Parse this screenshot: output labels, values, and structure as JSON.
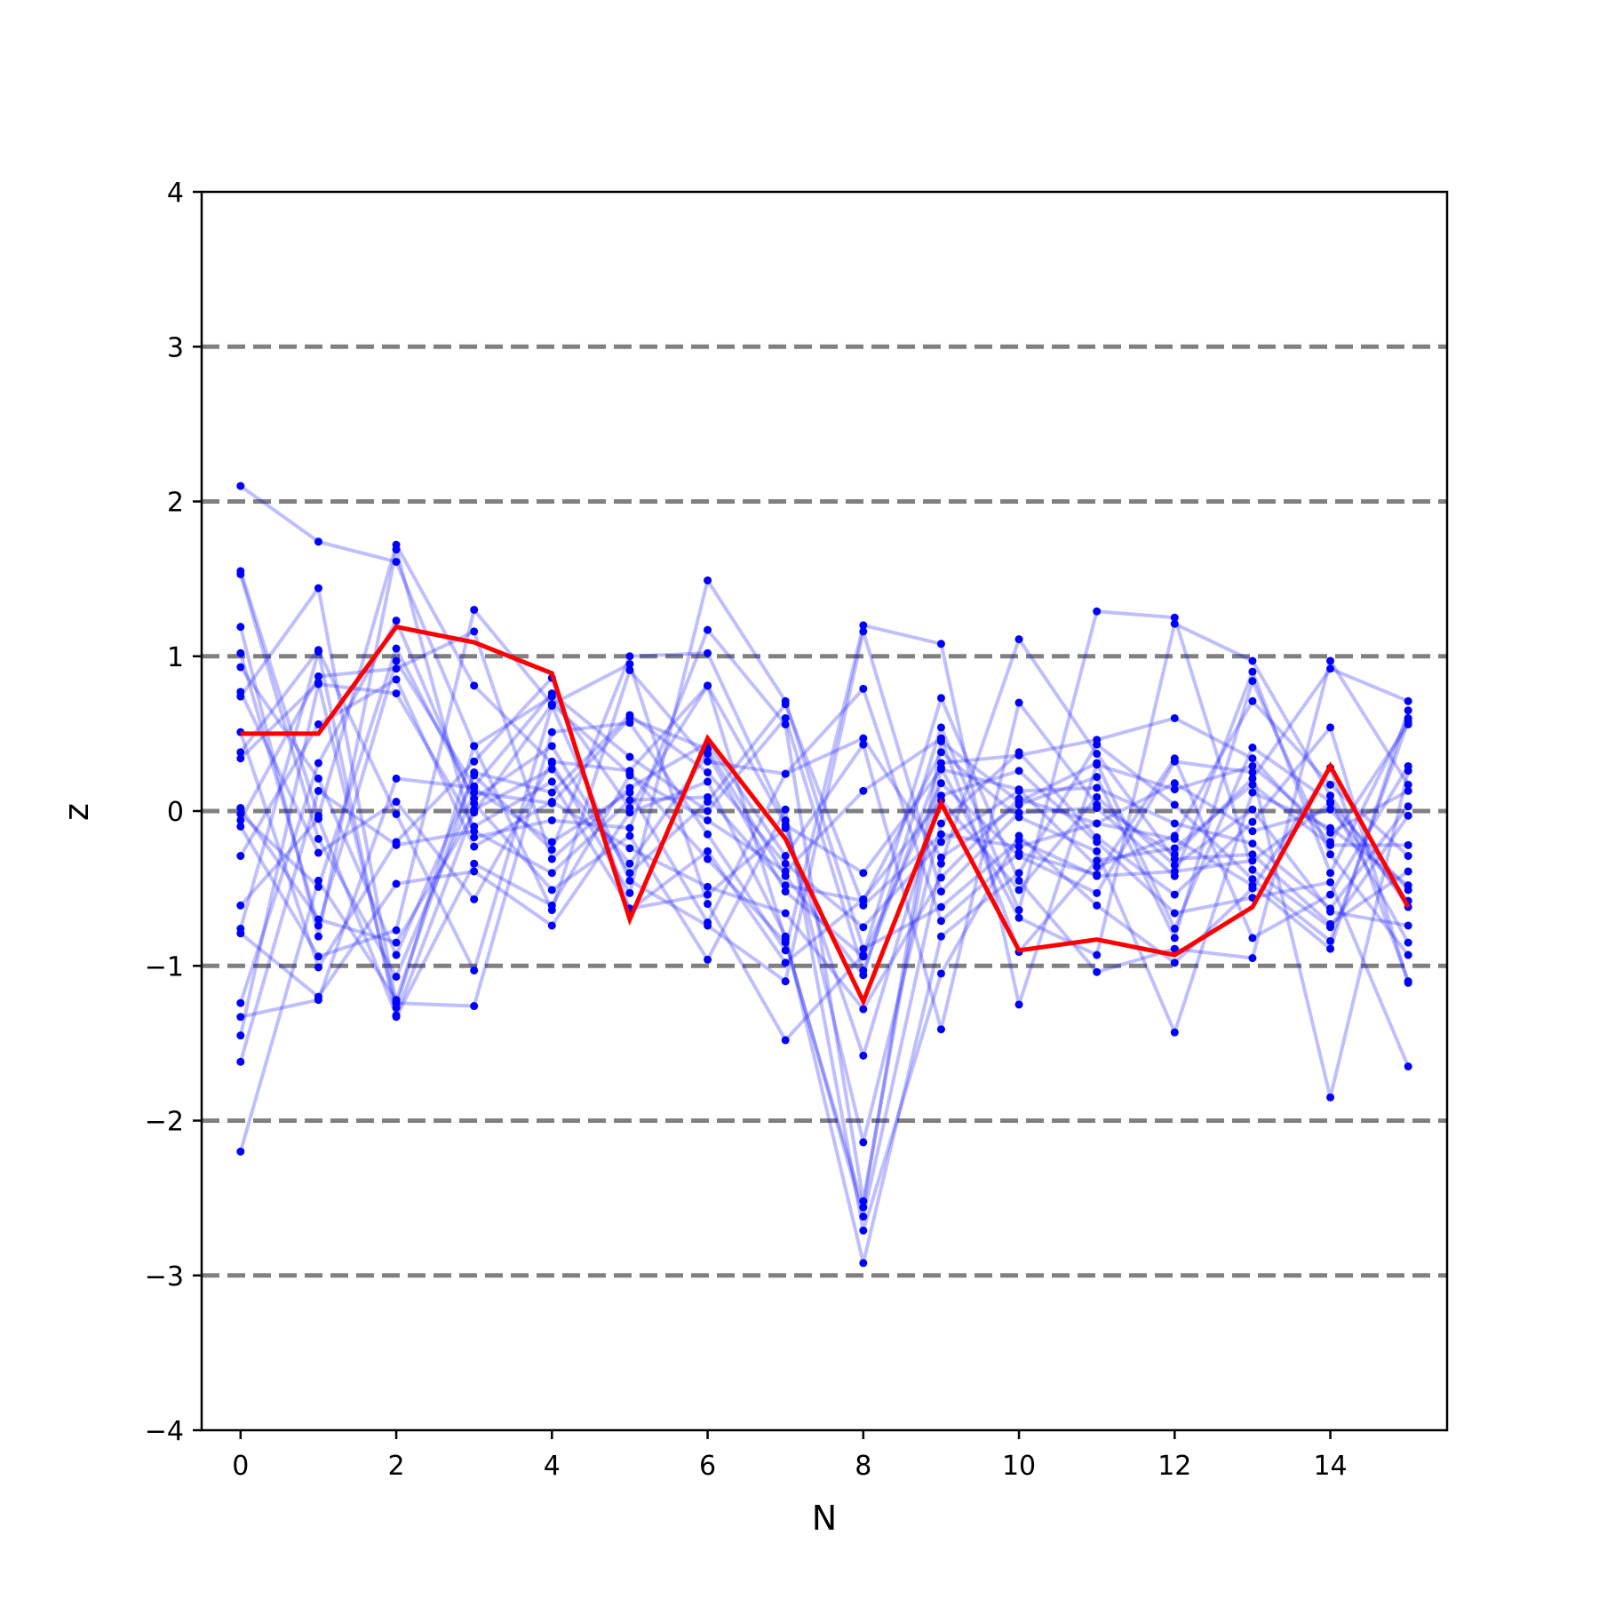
{
  "chart_data": {
    "type": "line",
    "title": "",
    "xlabel": "N",
    "ylabel": "z",
    "xlim": [
      -0.5,
      15.5
    ],
    "ylim": [
      -4,
      4
    ],
    "xticks": [
      0,
      2,
      4,
      6,
      8,
      10,
      12,
      14
    ],
    "yticks": [
      -4,
      -3,
      -2,
      -1,
      0,
      1,
      2,
      3,
      4
    ],
    "xtick_labels": [
      "0",
      "2",
      "4",
      "6",
      "8",
      "10",
      "12",
      "14"
    ],
    "ytick_labels": [
      "−4",
      "−3",
      "−2",
      "−1",
      "0",
      "1",
      "2",
      "3",
      "4"
    ],
    "reference_lines": [
      -3,
      -2,
      -1,
      0,
      1,
      2,
      3
    ],
    "reference_line_style": "dashed",
    "grid": false,
    "x": [
      0,
      1,
      2,
      3,
      4,
      5,
      6,
      7,
      8,
      9,
      10,
      11,
      12,
      13,
      14,
      15
    ],
    "background_series": [
      [
        2.1,
        1.74,
        1.61,
        0.42,
        0.74,
        0.02,
        0.81,
        -0.09,
        -0.4,
        0.27,
        0.14,
        -0.36,
        -0.16,
        0.71,
        0.17,
        -0.29
      ],
      [
        1.55,
        -0.03,
        1.72,
        0.81,
        0.31,
        -0.53,
        1.49,
        0.71,
        -0.89,
        -0.62,
        -0.19,
        -0.42,
        -0.39,
        -0.32,
        0.05,
        -0.51
      ],
      [
        1.53,
        -0.18,
        -1.07,
        0.12,
        0.05,
        0.6,
        0.4,
        -0.42,
        -1.06,
        0.54,
        -0.64,
        1.29,
        1.25,
        -0.38,
        -0.75,
        -0.03
      ],
      [
        1.19,
        -0.81,
        1.69,
        -0.17,
        -0.06,
        -0.11,
        1.17,
        0.56,
        -2.52,
        0.28,
        -0.69,
        -0.93,
        1.21,
        0.97,
        0.1,
        -0.62
      ],
      [
        1.02,
        -0.74,
        0.97,
        0.16,
        0.76,
        0.35,
        0.0,
        0.6,
        -1.03,
        0.31,
        0.36,
        0.46,
        0.6,
        0.34,
        -0.2,
        0.56
      ],
      [
        0.93,
        0.21,
        -0.93,
        0.23,
        -0.25,
        1.0,
        1.02,
        -0.06,
        -2.14,
        -0.08,
        0.38,
        -0.17,
        -0.54,
        -0.07,
        0.54,
        -1.11
      ],
      [
        0.77,
        -0.27,
        0.06,
        -0.57,
        0.32,
        0.26,
        0.81,
        -0.83,
        -2.62,
        -0.34,
        1.11,
        0.37,
        -0.31,
        -0.28,
        -0.73,
        -0.39
      ],
      [
        0.74,
        1.44,
        -1.24,
        -1.26,
        0.51,
        0.57,
        -0.15,
        -0.9,
        1.2,
        1.08,
        -1.25,
        0.3,
        0.14,
        0.29,
        -0.14,
        0.13
      ],
      [
        0.38,
        1.04,
        -0.02,
        -1.03,
        0.68,
        -0.45,
        -0.74,
        -1.1,
        1.16,
        -0.52,
        -0.01,
        0.02,
        -0.42,
        0.9,
        -0.4,
        0.6
      ],
      [
        0.34,
        0.83,
        -1.27,
        0.42,
        -0.64,
        0.91,
        0.32,
        0.24,
        0.47,
        -0.3,
        0.04,
        0.22,
        -0.82,
        0.84,
        -0.28,
        -0.93
      ],
      [
        -0.06,
        0.87,
        0.92,
        1.16,
        -0.31,
        0.15,
        0.44,
        -0.29,
        0.43,
        -1.41,
        0.7,
        0.04,
        -0.28,
        0.21,
        0.92,
        0.71
      ],
      [
        -0.1,
        -0.94,
        -0.77,
        1.3,
        0.69,
        0.95,
        -0.6,
        -1.48,
        -0.93,
        0.73,
        -0.45,
        -1.04,
        -0.89,
        -0.95,
        0.97,
        0.17
      ],
      [
        -0.29,
        0.56,
        0.85,
        -0.23,
        0.06,
        -0.24,
        -0.49,
        -0.66,
        -1.28,
        -0.43,
        0.08,
        -0.08,
        -0.18,
        -0.48,
        -0.89,
        0.65
      ],
      [
        -0.61,
        -0.05,
        -1.32,
        0.01,
        0.27,
        -0.34,
        0.37,
        -0.52,
        -0.94,
        0.18,
        -0.29,
        -0.53,
        0.32,
        0.25,
        -1.85,
        0.26
      ],
      [
        -0.76,
        1.03,
        -1.33,
        -0.34,
        -0.61,
        0.23,
        -0.06,
        -0.39,
        0.13,
        0.47,
        -0.91,
        -0.32,
        -0.24,
        0.17,
        -0.22,
        -0.22
      ],
      [
        -0.79,
        -1.2,
        -0.47,
        -0.39,
        -0.74,
        -0.01,
        0.19,
        -0.81,
        -2.92,
        -0.81,
        -0.4,
        0.43,
        0.04,
        -0.44,
        -0.84,
        0.58
      ],
      [
        -1.24,
        0.31,
        1.23,
        0.05,
        -0.51,
        -0.16,
        -0.96,
        0.01,
        -2.71,
        -1.05,
        -0.16,
        -0.61,
        -0.98,
        -0.5,
        0.28,
        -1.1
      ],
      [
        -1.33,
        -1.22,
        0.21,
        0.15,
        -0.2,
        0.12,
        -0.72,
        0.24,
        0.79,
        -0.71,
        -0.27,
        -0.41,
        0.34,
        -0.82,
        -0.54,
        0.29
      ],
      [
        -1.45,
        0.82,
        0.76,
        -0.1,
        0.19,
        -0.63,
        -0.54,
        -0.11,
        -1.58,
        0.1,
        0.26,
        -0.2,
        -0.66,
        -0.56,
        -0.46,
        -1.65
      ],
      [
        -1.62,
        0.13,
        -0.22,
        -0.13,
        -0.4,
        0.07,
        0.09,
        -0.48,
        -0.58,
        0.38,
        -0.04,
        -0.26,
        -1.43,
        0.12,
        -0.11,
        -0.48
      ],
      [
        -2.2,
        -0.45,
        -1.22,
        0.25,
        0.12,
        0.62,
        0.25,
        -0.34,
        -0.75,
        -0.2,
        0.13,
        0.15,
        -0.08,
        -0.21,
        -0.63,
        0.03
      ],
      [
        0.02,
        -0.7,
        -0.85,
        -0.01,
        0.69,
        0.24,
        -0.31,
        -0.85,
        -2.56,
        0.45,
        0.06,
        0.31,
        -0.76,
        0.41,
        0.06,
        -0.85
      ],
      [
        -0.02,
        -0.49,
        1.05,
        0.08,
        0.42,
        -0.4,
        0.06,
        0.69,
        -0.61,
        -0.15,
        -0.23,
        -0.08,
        0.18,
        -0.13,
        0.01,
        -0.58
      ],
      [
        0.51,
        -1.01,
        -0.2,
        0.32,
        0.86,
        -0.64,
        -0.26,
        -0.98,
        -0.57,
        0.07,
        -0.51,
        0.09,
        -0.35,
        0.01,
        -0.65,
        -0.74
      ]
    ],
    "series": [
      {
        "values": [
          0.5,
          0.5,
          1.19,
          1.09,
          0.89,
          -0.7,
          0.47,
          -0.18,
          -1.23,
          0.05,
          -0.9,
          -0.83,
          -0.93,
          -0.62,
          0.29,
          -0.62
        ],
        "color": "#ff0000"
      }
    ],
    "colors": {
      "background_series": "#0000ff",
      "highlight": "#ff0000",
      "reference_line": "#808080"
    }
  }
}
